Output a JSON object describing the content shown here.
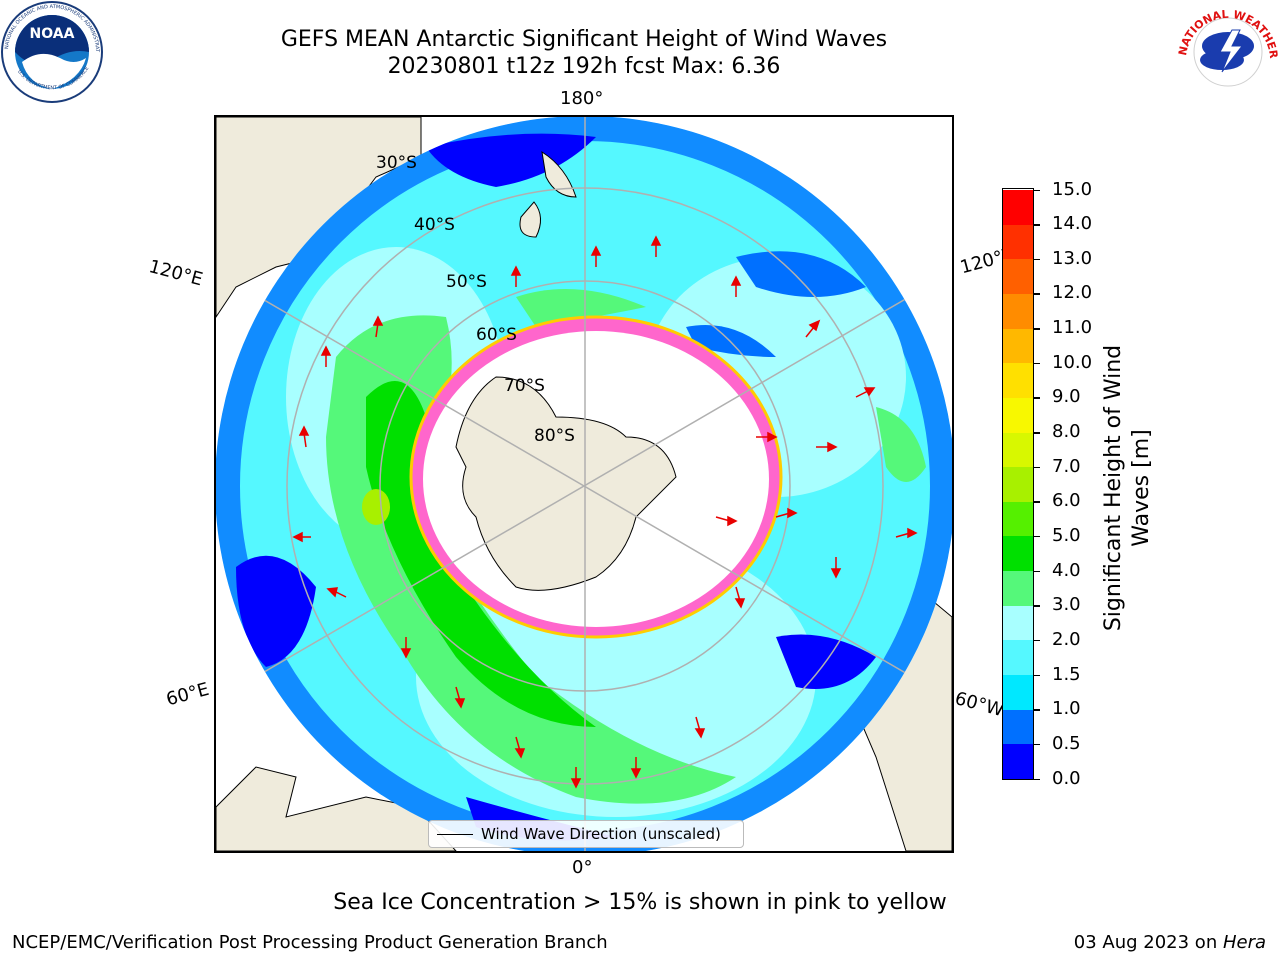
{
  "header": {
    "title_line1": "GEFS MEAN Antarctic Significant Height of Wind Waves",
    "title_line2": "20230801 t12z 192h fcst   Max: 6.36"
  },
  "logos": {
    "left": {
      "name": "noaa-logo",
      "text": "NOAA",
      "ring_text": "NATIONAL OCEANIC AND ATMOSPHERIC ADMINISTRATION · U.S. DEPARTMENT OF COMMERCE"
    },
    "right": {
      "name": "nws-logo",
      "ring_text": "NATIONAL WEATHER SERVICE"
    }
  },
  "map": {
    "longitude_labels": {
      "top": "180°",
      "bottom": "0°",
      "left_top": "120°E",
      "left_bottom": "60°E",
      "right_top": "120°W",
      "right_bottom": "60°W"
    },
    "latitude_labels": [
      "30°S",
      "40°S",
      "50°S",
      "60°S",
      "70°S",
      "80°S"
    ],
    "legend_label": "Wind Wave Direction (unscaled)",
    "colors": {
      "land": "#efebdc",
      "ice": "#ffffff",
      "arrow": "#ff0000",
      "grid": "#b0b0b0"
    }
  },
  "colorbar": {
    "title": "Significant Height of Wind Waves [m]",
    "ticks": [
      "0.0",
      "0.5",
      "1.0",
      "1.5",
      "2.0",
      "3.0",
      "4.0",
      "5.0",
      "6.0",
      "7.0",
      "8.0",
      "9.0",
      "10.0",
      "11.0",
      "12.0",
      "13.0",
      "14.0",
      "15.0"
    ],
    "colors": [
      "#0000ff",
      "#0070ff",
      "#00e8ff",
      "#55f8ff",
      "#a8ffff",
      "#55f87a",
      "#00e000",
      "#55f000",
      "#a8f000",
      "#d8f800",
      "#f8f800",
      "#ffe000",
      "#ffb800",
      "#ff8c00",
      "#ff6000",
      "#ff3000",
      "#ff0000"
    ]
  },
  "footer": {
    "caption": "Sea Ice Concentration > 15% is shown in pink to yellow",
    "left": "NCEP/EMC/Verification Post Processing Product Generation Branch",
    "right_prefix": "03 Aug 2023 on ",
    "right_host": "Hera"
  }
}
